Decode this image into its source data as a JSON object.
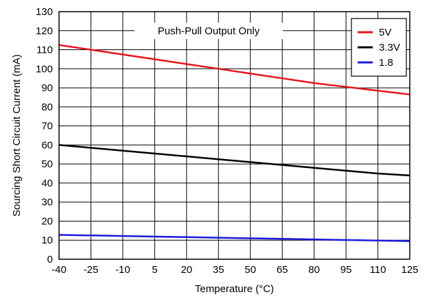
{
  "chart_data": {
    "type": "line",
    "title": "",
    "xlabel": "Temperature (°C)",
    "ylabel": "Sourcing Short Circuit Current (mA)",
    "xlim": [
      -40,
      125
    ],
    "ylim": [
      0,
      130
    ],
    "x_ticks": [
      "-40",
      "-25",
      "-10",
      "5",
      "20",
      "35",
      "50",
      "65",
      "80",
      "95",
      "110",
      "125"
    ],
    "y_ticks": [
      "0",
      "10",
      "20",
      "30",
      "40",
      "50",
      "60",
      "70",
      "80",
      "90",
      "100",
      "110",
      "120",
      "130"
    ],
    "grid": true,
    "legend_position": "top-right",
    "annotation": "Push-Pull Output Only",
    "x": [
      -40,
      -25,
      -10,
      5,
      20,
      35,
      50,
      65,
      80,
      95,
      110,
      125
    ],
    "series": [
      {
        "name": "5V",
        "color": "#e8141b",
        "values": [
          112.5,
          110,
          107.5,
          105,
          102.5,
          100,
          97.5,
          95,
          92.5,
          90.5,
          88.5,
          86.5
        ]
      },
      {
        "name": "3.3V",
        "color": "#000000",
        "values": [
          60,
          58.5,
          57,
          55.5,
          54,
          52.5,
          51,
          49.5,
          48,
          46.5,
          45,
          44
        ]
      },
      {
        "name": "1.8",
        "color": "#1a1adc",
        "values": [
          12.8,
          12.5,
          12.2,
          11.9,
          11.6,
          11.3,
          11,
          10.7,
          10.4,
          10.1,
          9.8,
          9.5
        ]
      }
    ]
  }
}
